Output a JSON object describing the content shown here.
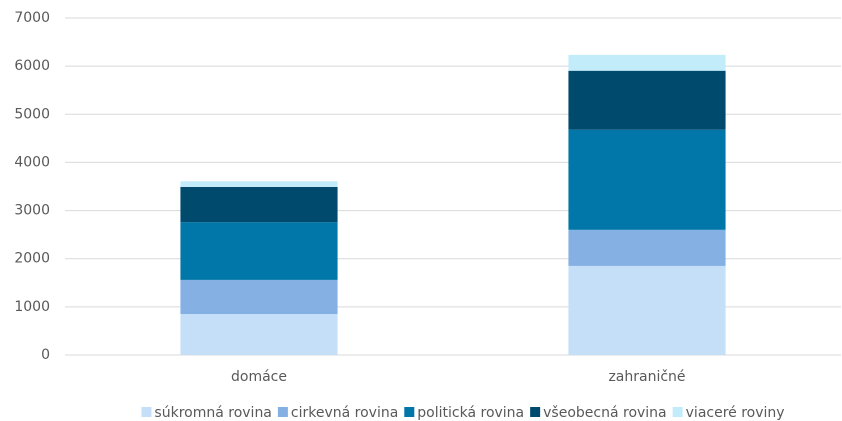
{
  "chart_data": {
    "type": "stacked_bar",
    "categories": [
      "domáce",
      "zahraničné"
    ],
    "series": [
      {
        "name": "súkromná rovina",
        "color": "#c5dff8",
        "values": [
          850,
          1850
        ]
      },
      {
        "name": "cirkevná rovina",
        "color": "#85b0e4",
        "values": [
          710,
          750
        ]
      },
      {
        "name": "politická rovina",
        "color": "#0077a8",
        "values": [
          1200,
          2080
        ]
      },
      {
        "name": "všeobecná rovina",
        "color": "#004a6e",
        "values": [
          730,
          1225
        ]
      },
      {
        "name": "viaceré roviny",
        "color": "#c3ecfb",
        "values": [
          120,
          330
        ]
      }
    ],
    "ylim": [
      0,
      7000
    ],
    "yticks": [
      0,
      1000,
      2000,
      3000,
      4000,
      5000,
      6000,
      7000
    ],
    "grid": true,
    "legend": "bottom"
  }
}
